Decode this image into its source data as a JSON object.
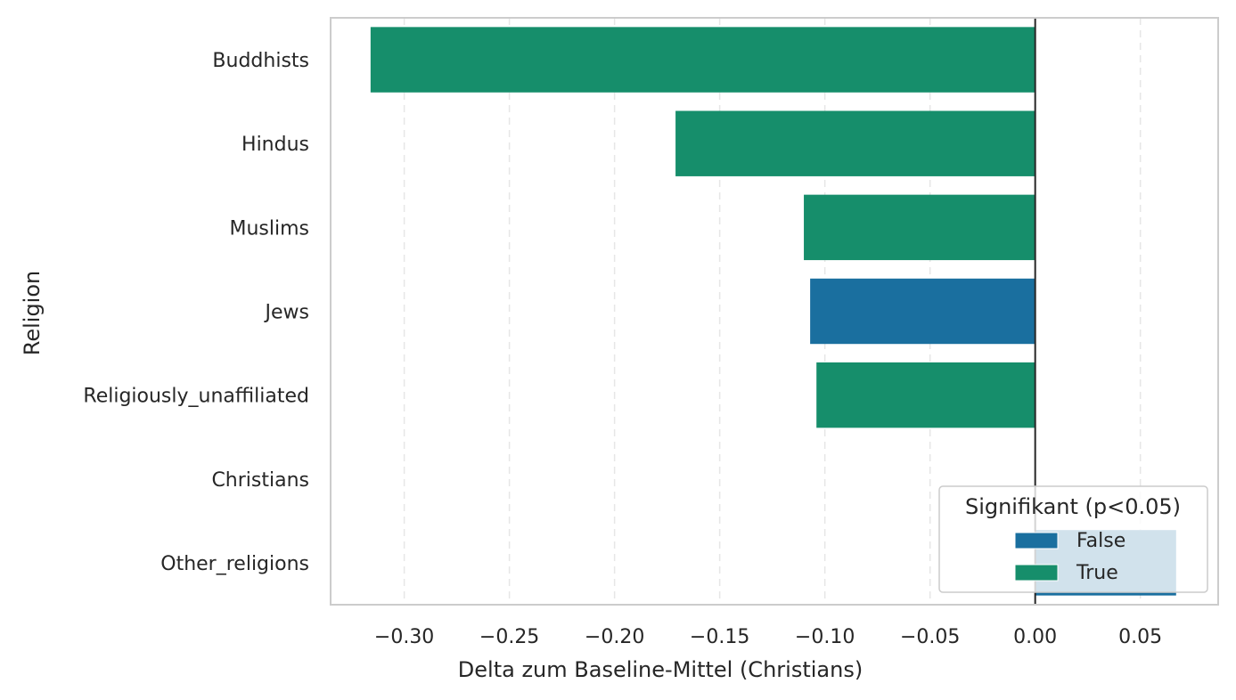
{
  "chart_data": {
    "type": "bar",
    "orientation": "horizontal",
    "categories": [
      "Buddhists",
      "Hindus",
      "Muslims",
      "Jews",
      "Religiously_unaffiliated",
      "Christians",
      "Other_religions"
    ],
    "values": [
      -0.316,
      -0.171,
      -0.11,
      -0.107,
      -0.104,
      0.0,
      0.067
    ],
    "significant": [
      "True",
      "True",
      "True",
      "False",
      "True",
      "True",
      "False"
    ],
    "xlabel": "Delta zum Baseline-Mittel (Christians)",
    "ylabel": "Religion",
    "xlim": [
      -0.335,
      0.087
    ],
    "xticks": [
      -0.3,
      -0.25,
      -0.2,
      -0.15,
      -0.1,
      -0.05,
      0.0,
      0.05
    ],
    "xtick_labels": [
      "−0.30",
      "−0.25",
      "−0.20",
      "−0.15",
      "−0.10",
      "−0.05",
      "0.00",
      "0.05"
    ],
    "grid": "vertical dashed",
    "reference_line_x": 0.0,
    "legend": {
      "title": "Signifikant (p<0.05)",
      "placement": "lower-right",
      "entries": [
        {
          "label": "False",
          "color": "#1a6f9f"
        },
        {
          "label": "True",
          "color": "#168e6b"
        }
      ]
    },
    "colors": {
      "False": "#1a6f9f",
      "True": "#168e6b"
    }
  }
}
